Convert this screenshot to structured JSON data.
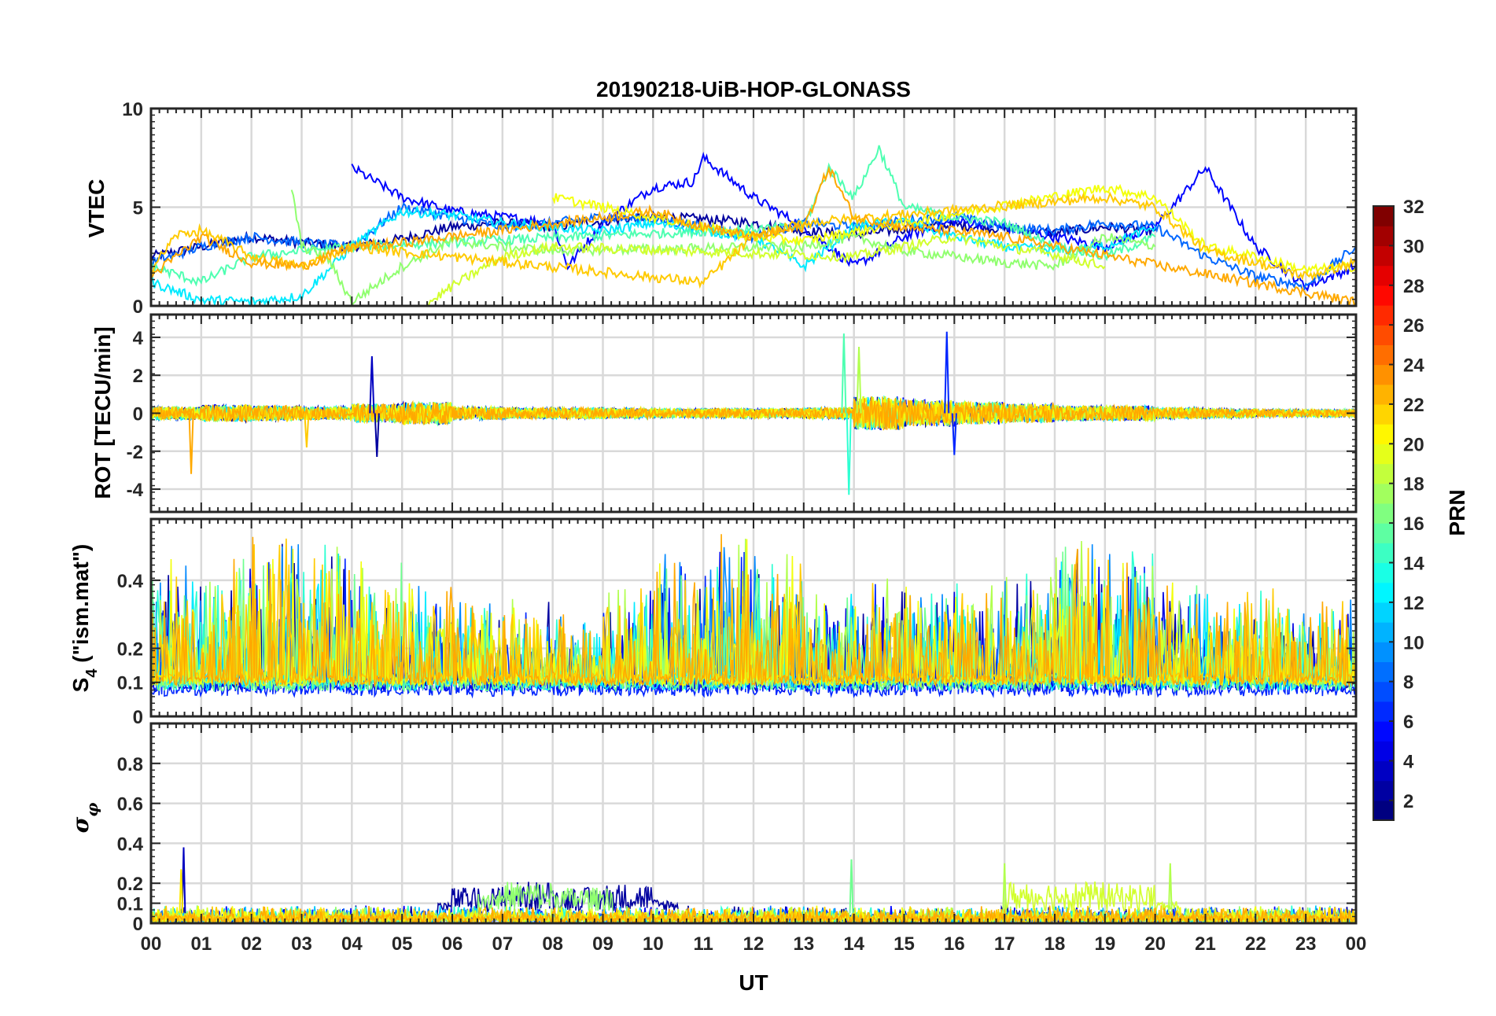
{
  "title": "20190218-UiB-HOP-GLONASS",
  "chart_data": [
    {
      "type": "line",
      "panel": "vtec",
      "ylabel": "VTEC",
      "ylim": [
        0,
        10
      ],
      "yticks": [
        0,
        5,
        10
      ],
      "xlim": [
        0,
        24
      ],
      "series": [
        {
          "name": "PRN 2",
          "prn": 2,
          "x": [
            0,
            1,
            2,
            3,
            4,
            5,
            6,
            7,
            8,
            9,
            10,
            11,
            12,
            13,
            14,
            15,
            16,
            17,
            18,
            19,
            20
          ],
          "values": [
            2.5,
            3.0,
            3.5,
            3.2,
            3.0,
            3.4,
            4.0,
            4.2,
            4.0,
            4.3,
            4.5,
            4.4,
            4.2,
            3.8,
            3.6,
            3.9,
            4.1,
            3.9,
            3.7,
            4.0,
            3.8
          ]
        },
        {
          "name": "PRN 5",
          "prn": 5,
          "x": [
            4,
            5,
            6,
            7,
            8,
            8.3,
            9,
            10,
            10.8,
            11,
            12,
            13,
            14,
            15,
            16,
            17,
            18,
            19,
            20,
            21,
            22,
            23,
            24
          ],
          "values": [
            7.0,
            5.5,
            4.8,
            4.5,
            4.2,
            2.0,
            4.2,
            6.0,
            6.3,
            7.5,
            5.5,
            4.0,
            2.0,
            3.5,
            4.3,
            4.0,
            3.5,
            3.0,
            4.0,
            7.0,
            3.0,
            1.0,
            2.0
          ]
        },
        {
          "name": "PRN 8",
          "prn": 8,
          "x": [
            0,
            1,
            2,
            3,
            4,
            5,
            6,
            7,
            8,
            9,
            10,
            11,
            12,
            13,
            14,
            15,
            16,
            17,
            18,
            19,
            20,
            21,
            22,
            23,
            24
          ],
          "values": [
            2.2,
            3.0,
            3.5,
            3.2,
            3.0,
            5.0,
            4.5,
            4.0,
            4.2,
            4.5,
            4.4,
            4.0,
            3.5,
            4.2,
            4.0,
            4.3,
            4.5,
            4.0,
            3.8,
            4.2,
            4.0,
            2.5,
            1.5,
            1.0,
            3.0
          ]
        },
        {
          "name": "PRN 12",
          "prn": 12,
          "x": [
            0,
            1,
            2,
            3,
            4,
            5,
            6,
            7,
            8,
            9,
            10,
            11,
            12,
            13,
            14,
            15,
            16,
            17,
            18,
            19,
            20
          ],
          "values": [
            1.2,
            0.3,
            0.2,
            0.5,
            3.0,
            4.8,
            4.6,
            4.2,
            4.0,
            3.8,
            4.2,
            3.8,
            3.5,
            2.0,
            4.0,
            4.3,
            3.5,
            3.0,
            2.8,
            3.0,
            4.0
          ]
        },
        {
          "name": "PRN 15",
          "prn": 15,
          "x": [
            0,
            1,
            2,
            3,
            4,
            13,
            13.5,
            14,
            14.5,
            15,
            16,
            17,
            18,
            19,
            20
          ],
          "values": [
            2.0,
            1.2,
            2.5,
            2.8,
            3.0,
            4.0,
            7.0,
            5.5,
            8.0,
            5.0,
            4.5,
            4.2,
            3.0,
            2.5,
            3.5
          ]
        },
        {
          "name": "PRN 17",
          "prn": 17,
          "x": [
            2.8,
            3,
            3.5,
            4,
            5,
            6,
            7,
            8,
            13,
            14,
            15,
            16,
            17,
            18,
            19,
            20
          ],
          "values": [
            6.0,
            3.0,
            2.5,
            0.2,
            2.0,
            3.3,
            3.0,
            2.8,
            3.0,
            3.5,
            2.8,
            2.5,
            2.2,
            2.0,
            3.5,
            3.0
          ]
        },
        {
          "name": "PRN 19",
          "prn": 19,
          "x": [
            5.5,
            6,
            7,
            8,
            14,
            15,
            16,
            17,
            18,
            19
          ],
          "values": [
            0.1,
            1.0,
            2.5,
            3.0,
            2.5,
            3.0,
            3.5,
            3.0,
            2.6,
            2.0
          ]
        },
        {
          "name": "PRN 20",
          "prn": 20,
          "x": [
            8,
            9,
            10,
            11,
            12,
            13,
            19,
            20,
            21,
            22,
            23,
            24
          ],
          "values": [
            5.5,
            5.0,
            4.5,
            4.0,
            3.5,
            3.3,
            6.0,
            5.5,
            3.0,
            2.5,
            1.8,
            2.0
          ]
        },
        {
          "name": "PRN 22",
          "prn": 22,
          "x": [
            0,
            0.5,
            1,
            1.5,
            2,
            3,
            4,
            11,
            12,
            13,
            19,
            20,
            21,
            22,
            23,
            24
          ],
          "values": [
            1.8,
            3.6,
            3.8,
            3.2,
            2.5,
            2.0,
            3.0,
            1.2,
            3.5,
            4.2,
            5.5,
            5.0,
            2.8,
            2.2,
            1.5,
            2.2
          ]
        },
        {
          "name": "PRN 23",
          "prn": 23,
          "x": [
            0,
            1,
            2,
            3,
            4,
            5,
            10,
            11,
            12,
            13,
            13.5,
            14,
            15,
            16,
            17,
            24
          ],
          "values": [
            1.5,
            3.5,
            2.2,
            2.0,
            3.0,
            3.2,
            4.8,
            4.0,
            3.5,
            4.0,
            7.0,
            4.5,
            4.0,
            3.8,
            3.5,
            0.2
          ]
        }
      ]
    },
    {
      "type": "line",
      "panel": "rot",
      "ylabel": "ROT [TECU/min]",
      "ylim": [
        -5.2,
        5.2
      ],
      "yticks": [
        -4,
        -2,
        0,
        2,
        4
      ],
      "xlim": [
        0,
        24
      ],
      "noise": [
        0.35,
        0.45,
        0.4,
        0.35,
        0.5,
        0.6,
        0.35,
        0.3,
        0.3,
        0.28,
        0.25,
        0.25,
        0.25,
        0.3,
        0.9,
        0.7,
        0.6,
        0.5,
        0.4,
        0.4,
        0.3,
        0.25,
        0.2,
        0.2
      ],
      "spikes": [
        {
          "x": 0.8,
          "y": -3.2,
          "prn": 23
        },
        {
          "x": 3.1,
          "y": -1.8,
          "prn": 22
        },
        {
          "x": 4.4,
          "y": 3.0,
          "prn": 3
        },
        {
          "x": 4.5,
          "y": -2.3,
          "prn": 2
        },
        {
          "x": 13.8,
          "y": 4.2,
          "prn": 15
        },
        {
          "x": 13.9,
          "y": -4.3,
          "prn": 14
        },
        {
          "x": 14.1,
          "y": 3.5,
          "prn": 18
        },
        {
          "x": 15.85,
          "y": 4.3,
          "prn": 6
        },
        {
          "x": 16.0,
          "y": -2.2,
          "prn": 6
        }
      ]
    },
    {
      "type": "line",
      "panel": "s4",
      "ylabel": "S4 (\"ism.mat\")",
      "ylim": [
        0,
        0.58
      ],
      "yticks": [
        0,
        0.1,
        0.2,
        0.4
      ],
      "xlim": [
        0,
        24
      ],
      "activity": [
        0.35,
        0.4,
        0.45,
        0.45,
        0.38,
        0.3,
        0.25,
        0.25,
        0.2,
        0.3,
        0.4,
        0.45,
        0.4,
        0.28,
        0.32,
        0.3,
        0.3,
        0.35,
        0.45,
        0.45,
        0.3,
        0.3,
        0.28,
        0.25
      ]
    },
    {
      "type": "line",
      "panel": "sigma_phi",
      "ylabel": "σφ",
      "ylim": [
        0,
        1.0
      ],
      "yticks": [
        0,
        0.1,
        0.2,
        0.4,
        0.6,
        0.8
      ],
      "xlim": [
        0,
        24
      ],
      "activity": [
        0.05,
        0.05,
        0.05,
        0.05,
        0.04,
        0.05,
        0.12,
        0.15,
        0.12,
        0.14,
        0.06,
        0.05,
        0.05,
        0.04,
        0.05,
        0.04,
        0.04,
        0.15,
        0.15,
        0.14,
        0.05,
        0.04,
        0.04,
        0.04
      ],
      "spikes": [
        {
          "x": 0.65,
          "y": 0.38,
          "prn": 3
        },
        {
          "x": 0.6,
          "y": 0.27,
          "prn": 21
        },
        {
          "x": 13.95,
          "y": 0.32,
          "prn": 16
        },
        {
          "x": 17.0,
          "y": 0.3,
          "prn": 18
        },
        {
          "x": 20.3,
          "y": 0.3,
          "prn": 18
        }
      ]
    }
  ],
  "xaxis": {
    "label": "UT",
    "tick_labels": [
      "00",
      "01",
      "02",
      "03",
      "04",
      "05",
      "06",
      "07",
      "08",
      "09",
      "10",
      "11",
      "12",
      "13",
      "14",
      "15",
      "16",
      "17",
      "18",
      "19",
      "20",
      "21",
      "22",
      "23",
      "00"
    ]
  },
  "colorbar": {
    "label": "PRN",
    "range": [
      1,
      32
    ],
    "tick_values": [
      2,
      4,
      6,
      8,
      10,
      12,
      14,
      16,
      18,
      20,
      22,
      24,
      26,
      28,
      30,
      32
    ],
    "tick_labels": [
      "2",
      "4",
      "6",
      "8",
      "10",
      "12",
      "14",
      "16",
      "18",
      "20",
      "22",
      "24",
      "26",
      "28",
      "30",
      "32"
    ],
    "colormap": "jet"
  }
}
